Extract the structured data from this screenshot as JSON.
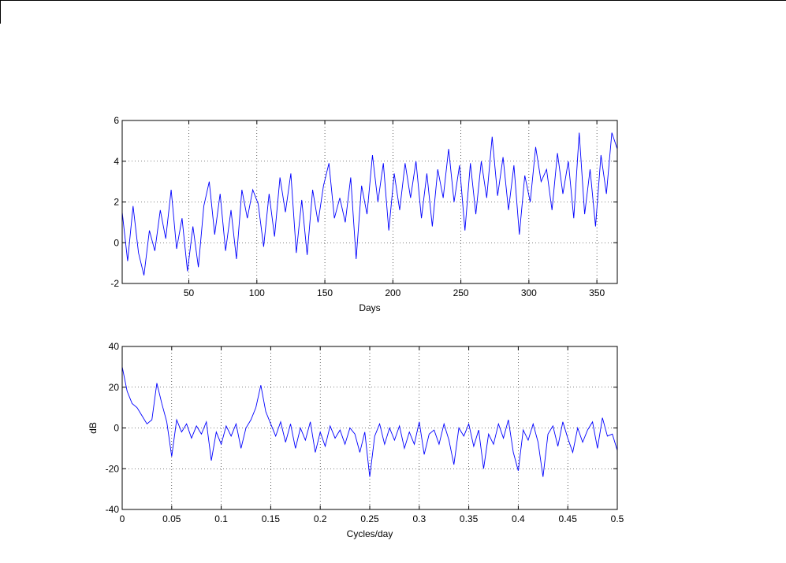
{
  "chart_data": [
    {
      "type": "line",
      "xlabel": "Days",
      "xlim": [
        1,
        365
      ],
      "ylim": [
        -2,
        6
      ],
      "xticks": [
        50,
        100,
        150,
        200,
        250,
        300,
        350
      ],
      "yticks": [
        -2,
        0,
        2,
        4,
        6
      ],
      "grid": true,
      "color": "#0000ff",
      "x": [
        1,
        5,
        9,
        13,
        17,
        21,
        25,
        29,
        33,
        37,
        41,
        45,
        49,
        53,
        57,
        61,
        65,
        69,
        73,
        77,
        81,
        85,
        89,
        93,
        97,
        101,
        105,
        109,
        113,
        117,
        121,
        125,
        129,
        133,
        137,
        141,
        145,
        149,
        153,
        157,
        161,
        165,
        169,
        173,
        177,
        181,
        185,
        189,
        193,
        197,
        201,
        205,
        209,
        213,
        217,
        221,
        225,
        229,
        233,
        237,
        241,
        245,
        249,
        253,
        257,
        261,
        265,
        269,
        273,
        277,
        281,
        285,
        289,
        293,
        297,
        301,
        305,
        309,
        313,
        317,
        321,
        325,
        329,
        333,
        337,
        341,
        345,
        349,
        353,
        357,
        361,
        365
      ],
      "values": [
        1.5,
        -0.9,
        1.8,
        -0.5,
        -1.6,
        0.6,
        -0.4,
        1.6,
        0.2,
        2.6,
        -0.3,
        1.2,
        -1.4,
        0.8,
        -1.2,
        1.8,
        3.0,
        0.4,
        2.4,
        -0.4,
        1.6,
        -0.8,
        2.6,
        1.2,
        2.6,
        1.9,
        -0.2,
        2.4,
        0.3,
        3.2,
        1.5,
        3.4,
        -0.5,
        2.1,
        -0.6,
        2.6,
        1.0,
        2.8,
        3.9,
        1.2,
        2.2,
        1.0,
        3.2,
        -0.8,
        2.8,
        1.4,
        4.3,
        2.0,
        3.9,
        0.6,
        3.4,
        1.6,
        3.9,
        2.2,
        4.0,
        1.2,
        3.4,
        0.8,
        3.6,
        2.2,
        4.6,
        2.0,
        3.8,
        0.6,
        3.9,
        1.4,
        4.0,
        2.2,
        5.2,
        2.3,
        4.2,
        1.6,
        3.8,
        0.4,
        3.3,
        2.0,
        4.7,
        3.0,
        3.6,
        1.6,
        4.4,
        2.4,
        4.0,
        1.2,
        5.4,
        1.4,
        3.6,
        0.8,
        4.3,
        2.4,
        5.4,
        4.6
      ]
    },
    {
      "type": "line",
      "xlabel": "Cycles/day",
      "ylabel": "dB",
      "xlim": [
        0,
        0.5
      ],
      "ylim": [
        -40,
        40
      ],
      "xticks": [
        0,
        0.05,
        0.1,
        0.15,
        0.2,
        0.25,
        0.3,
        0.35,
        0.4,
        0.45,
        0.5
      ],
      "yticks": [
        -40,
        -20,
        0,
        20,
        40
      ],
      "grid": true,
      "color": "#0000ff",
      "x": [
        0,
        0.005,
        0.01,
        0.015,
        0.02,
        0.025,
        0.03,
        0.035,
        0.04,
        0.045,
        0.05,
        0.055,
        0.06,
        0.065,
        0.07,
        0.075,
        0.08,
        0.085,
        0.09,
        0.095,
        0.1,
        0.105,
        0.11,
        0.115,
        0.12,
        0.125,
        0.13,
        0.135,
        0.14,
        0.145,
        0.15,
        0.155,
        0.16,
        0.165,
        0.17,
        0.175,
        0.18,
        0.185,
        0.19,
        0.195,
        0.2,
        0.205,
        0.21,
        0.215,
        0.22,
        0.225,
        0.23,
        0.235,
        0.24,
        0.245,
        0.25,
        0.255,
        0.26,
        0.265,
        0.27,
        0.275,
        0.28,
        0.285,
        0.29,
        0.295,
        0.3,
        0.305,
        0.31,
        0.315,
        0.32,
        0.325,
        0.33,
        0.335,
        0.34,
        0.345,
        0.35,
        0.355,
        0.36,
        0.365,
        0.37,
        0.375,
        0.38,
        0.385,
        0.39,
        0.395,
        0.4,
        0.405,
        0.41,
        0.415,
        0.42,
        0.425,
        0.43,
        0.435,
        0.44,
        0.445,
        0.45,
        0.455,
        0.46,
        0.465,
        0.47,
        0.475,
        0.48,
        0.485,
        0.49,
        0.495,
        0.5
      ],
      "values": [
        30,
        18,
        12,
        10,
        6,
        2,
        4,
        22,
        12,
        3,
        -14,
        4,
        -2,
        2,
        -5,
        1,
        -3,
        3,
        -16,
        -2,
        -8,
        1,
        -4,
        2,
        -10,
        0,
        4,
        10,
        21,
        8,
        2,
        -4,
        3,
        -7,
        2,
        -10,
        0,
        -6,
        3,
        -12,
        -2,
        -9,
        1,
        -5,
        -1,
        -8,
        0,
        -3,
        -12,
        -2,
        -24,
        -4,
        2,
        -8,
        0,
        -6,
        1,
        -10,
        -2,
        -8,
        3,
        -13,
        -3,
        -1,
        -8,
        2,
        -6,
        -18,
        0,
        -4,
        2,
        -9,
        -1,
        -20,
        -3,
        -8,
        2,
        -5,
        4,
        -12,
        -21,
        -1,
        -6,
        2,
        -7,
        -24,
        -3,
        1,
        -9,
        3,
        -5,
        -12,
        0,
        -7,
        -1,
        3,
        -10,
        5,
        -4,
        -3,
        -11
      ]
    }
  ]
}
